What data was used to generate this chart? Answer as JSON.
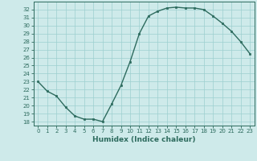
{
  "x": [
    0,
    1,
    2,
    3,
    4,
    5,
    6,
    7,
    8,
    9,
    10,
    11,
    12,
    13,
    14,
    15,
    16,
    17,
    18,
    19,
    20,
    21,
    22,
    23
  ],
  "y": [
    23.0,
    21.8,
    21.2,
    19.8,
    18.7,
    18.3,
    18.3,
    18.0,
    20.2,
    22.5,
    25.5,
    29.0,
    31.2,
    31.8,
    32.2,
    32.3,
    32.2,
    32.2,
    32.0,
    31.2,
    30.3,
    29.3,
    28.0,
    26.5
  ],
  "xlabel": "Humidex (Indice chaleur)",
  "ylim": [
    17.5,
    33.0
  ],
  "xlim": [
    -0.5,
    23.5
  ],
  "bg_color": "#ceeaea",
  "line_color": "#2d6b5e",
  "grid_color": "#9dcfcf",
  "yticks": [
    18,
    19,
    20,
    21,
    22,
    23,
    24,
    25,
    26,
    27,
    28,
    29,
    30,
    31,
    32
  ],
  "xticks": [
    0,
    1,
    2,
    3,
    4,
    5,
    6,
    7,
    8,
    9,
    10,
    11,
    12,
    13,
    14,
    15,
    16,
    17,
    18,
    19,
    20,
    21,
    22,
    23
  ],
  "xlabel_fontsize": 6.5,
  "tick_fontsize": 5.0,
  "linewidth": 1.0,
  "markersize": 2.0
}
